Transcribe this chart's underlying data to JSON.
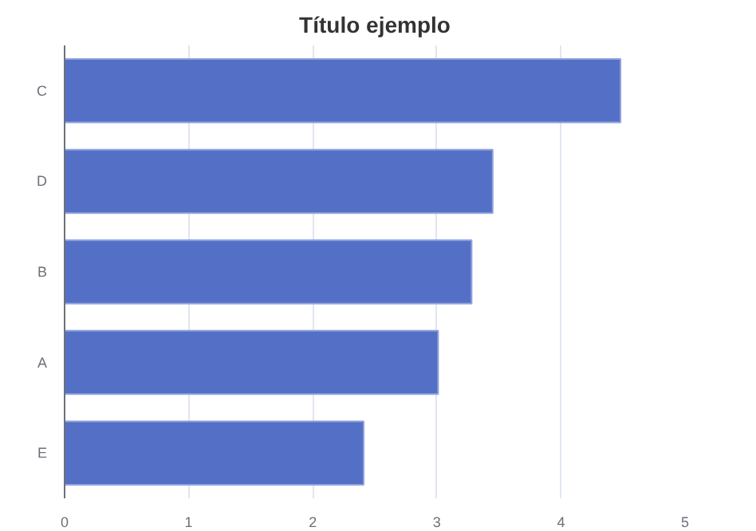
{
  "chart_data": {
    "type": "bar",
    "orientation": "horizontal",
    "title": "Título ejemplo",
    "categories": [
      "C",
      "D",
      "B",
      "A",
      "E"
    ],
    "values": [
      4.48,
      3.45,
      3.28,
      3.01,
      2.41
    ],
    "color": "#5470c6",
    "xlim": [
      0,
      5
    ],
    "xticks": [
      0,
      1,
      2,
      3,
      4,
      5
    ],
    "grid": "x"
  }
}
